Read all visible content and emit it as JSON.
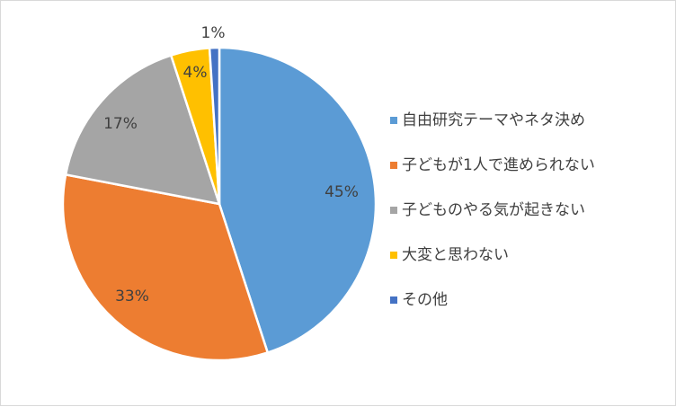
{
  "chart_data": {
    "type": "pie",
    "title": "",
    "categories": [
      "自由研究テーマやネタ決め",
      "子どもが1人で進められない",
      "子どものやる気が起きない",
      "大変と思わない",
      "その他"
    ],
    "values": [
      45,
      33,
      17,
      4,
      1
    ],
    "data_labels": [
      "45%",
      "33%",
      "17%",
      "4%",
      "1%"
    ],
    "colors": [
      "#5B9BD5",
      "#ED7D31",
      "#A5A5A5",
      "#FFC000",
      "#4472C4"
    ],
    "legend": "right",
    "grid": false
  }
}
